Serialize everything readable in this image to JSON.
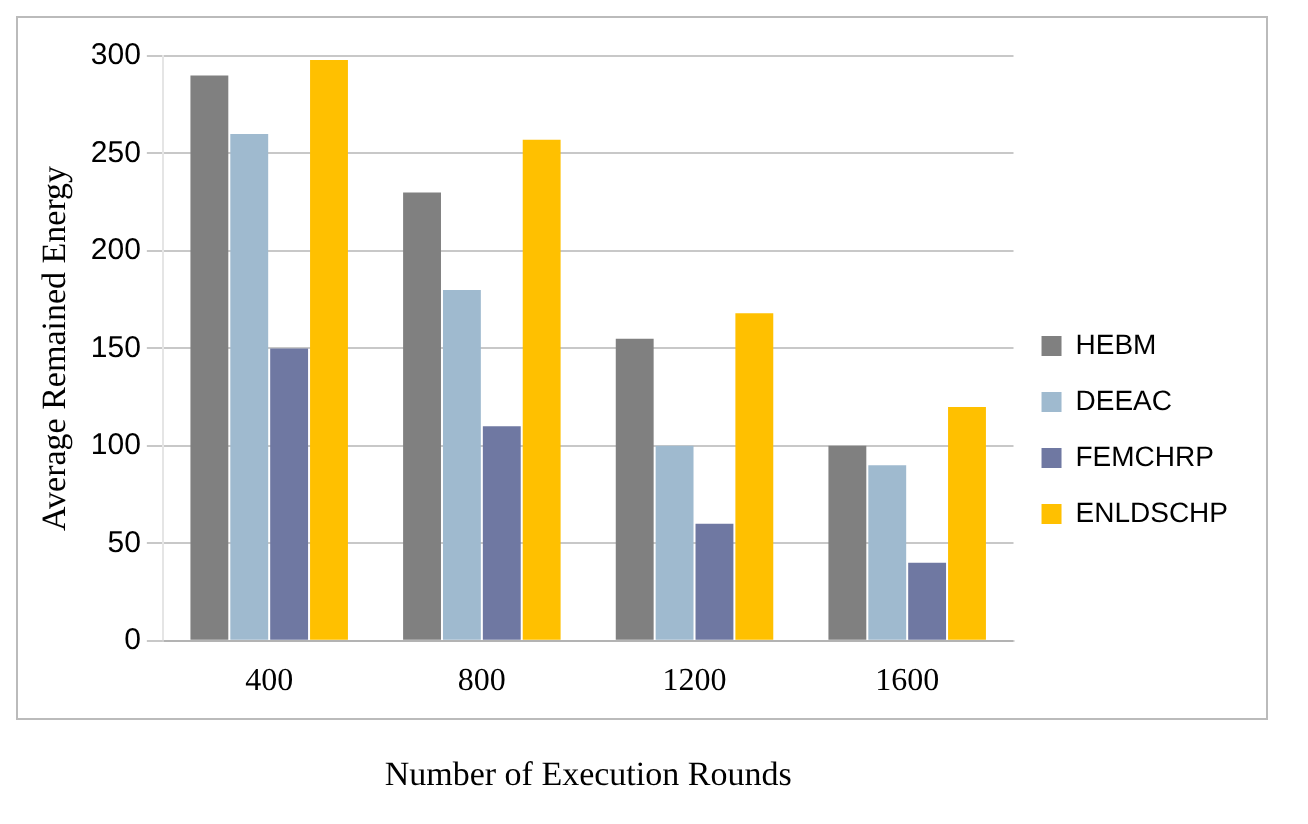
{
  "chart_data": {
    "type": "bar",
    "xlabel": "Number of Execution Rounds",
    "ylabel": "Average Remained Energy",
    "categories": [
      "400",
      "800",
      "1200",
      "1600"
    ],
    "series": [
      {
        "name": "HEBM",
        "color": "#808080",
        "values": [
          290,
          230,
          155,
          100
        ]
      },
      {
        "name": "DEEAC",
        "color": "#9fbacf",
        "values": [
          260,
          180,
          100,
          90
        ]
      },
      {
        "name": "FEMCHRP",
        "color": "#6f78a2",
        "values": [
          150,
          110,
          60,
          40
        ]
      },
      {
        "name": "ENLDSCHP",
        "color": "#ffc000",
        "values": [
          298,
          257,
          168,
          120
        ]
      }
    ],
    "ylim": [
      0,
      300
    ],
    "yticks": [
      0,
      50,
      100,
      150,
      200,
      250,
      300
    ],
    "grid": "y",
    "legend": "right"
  }
}
